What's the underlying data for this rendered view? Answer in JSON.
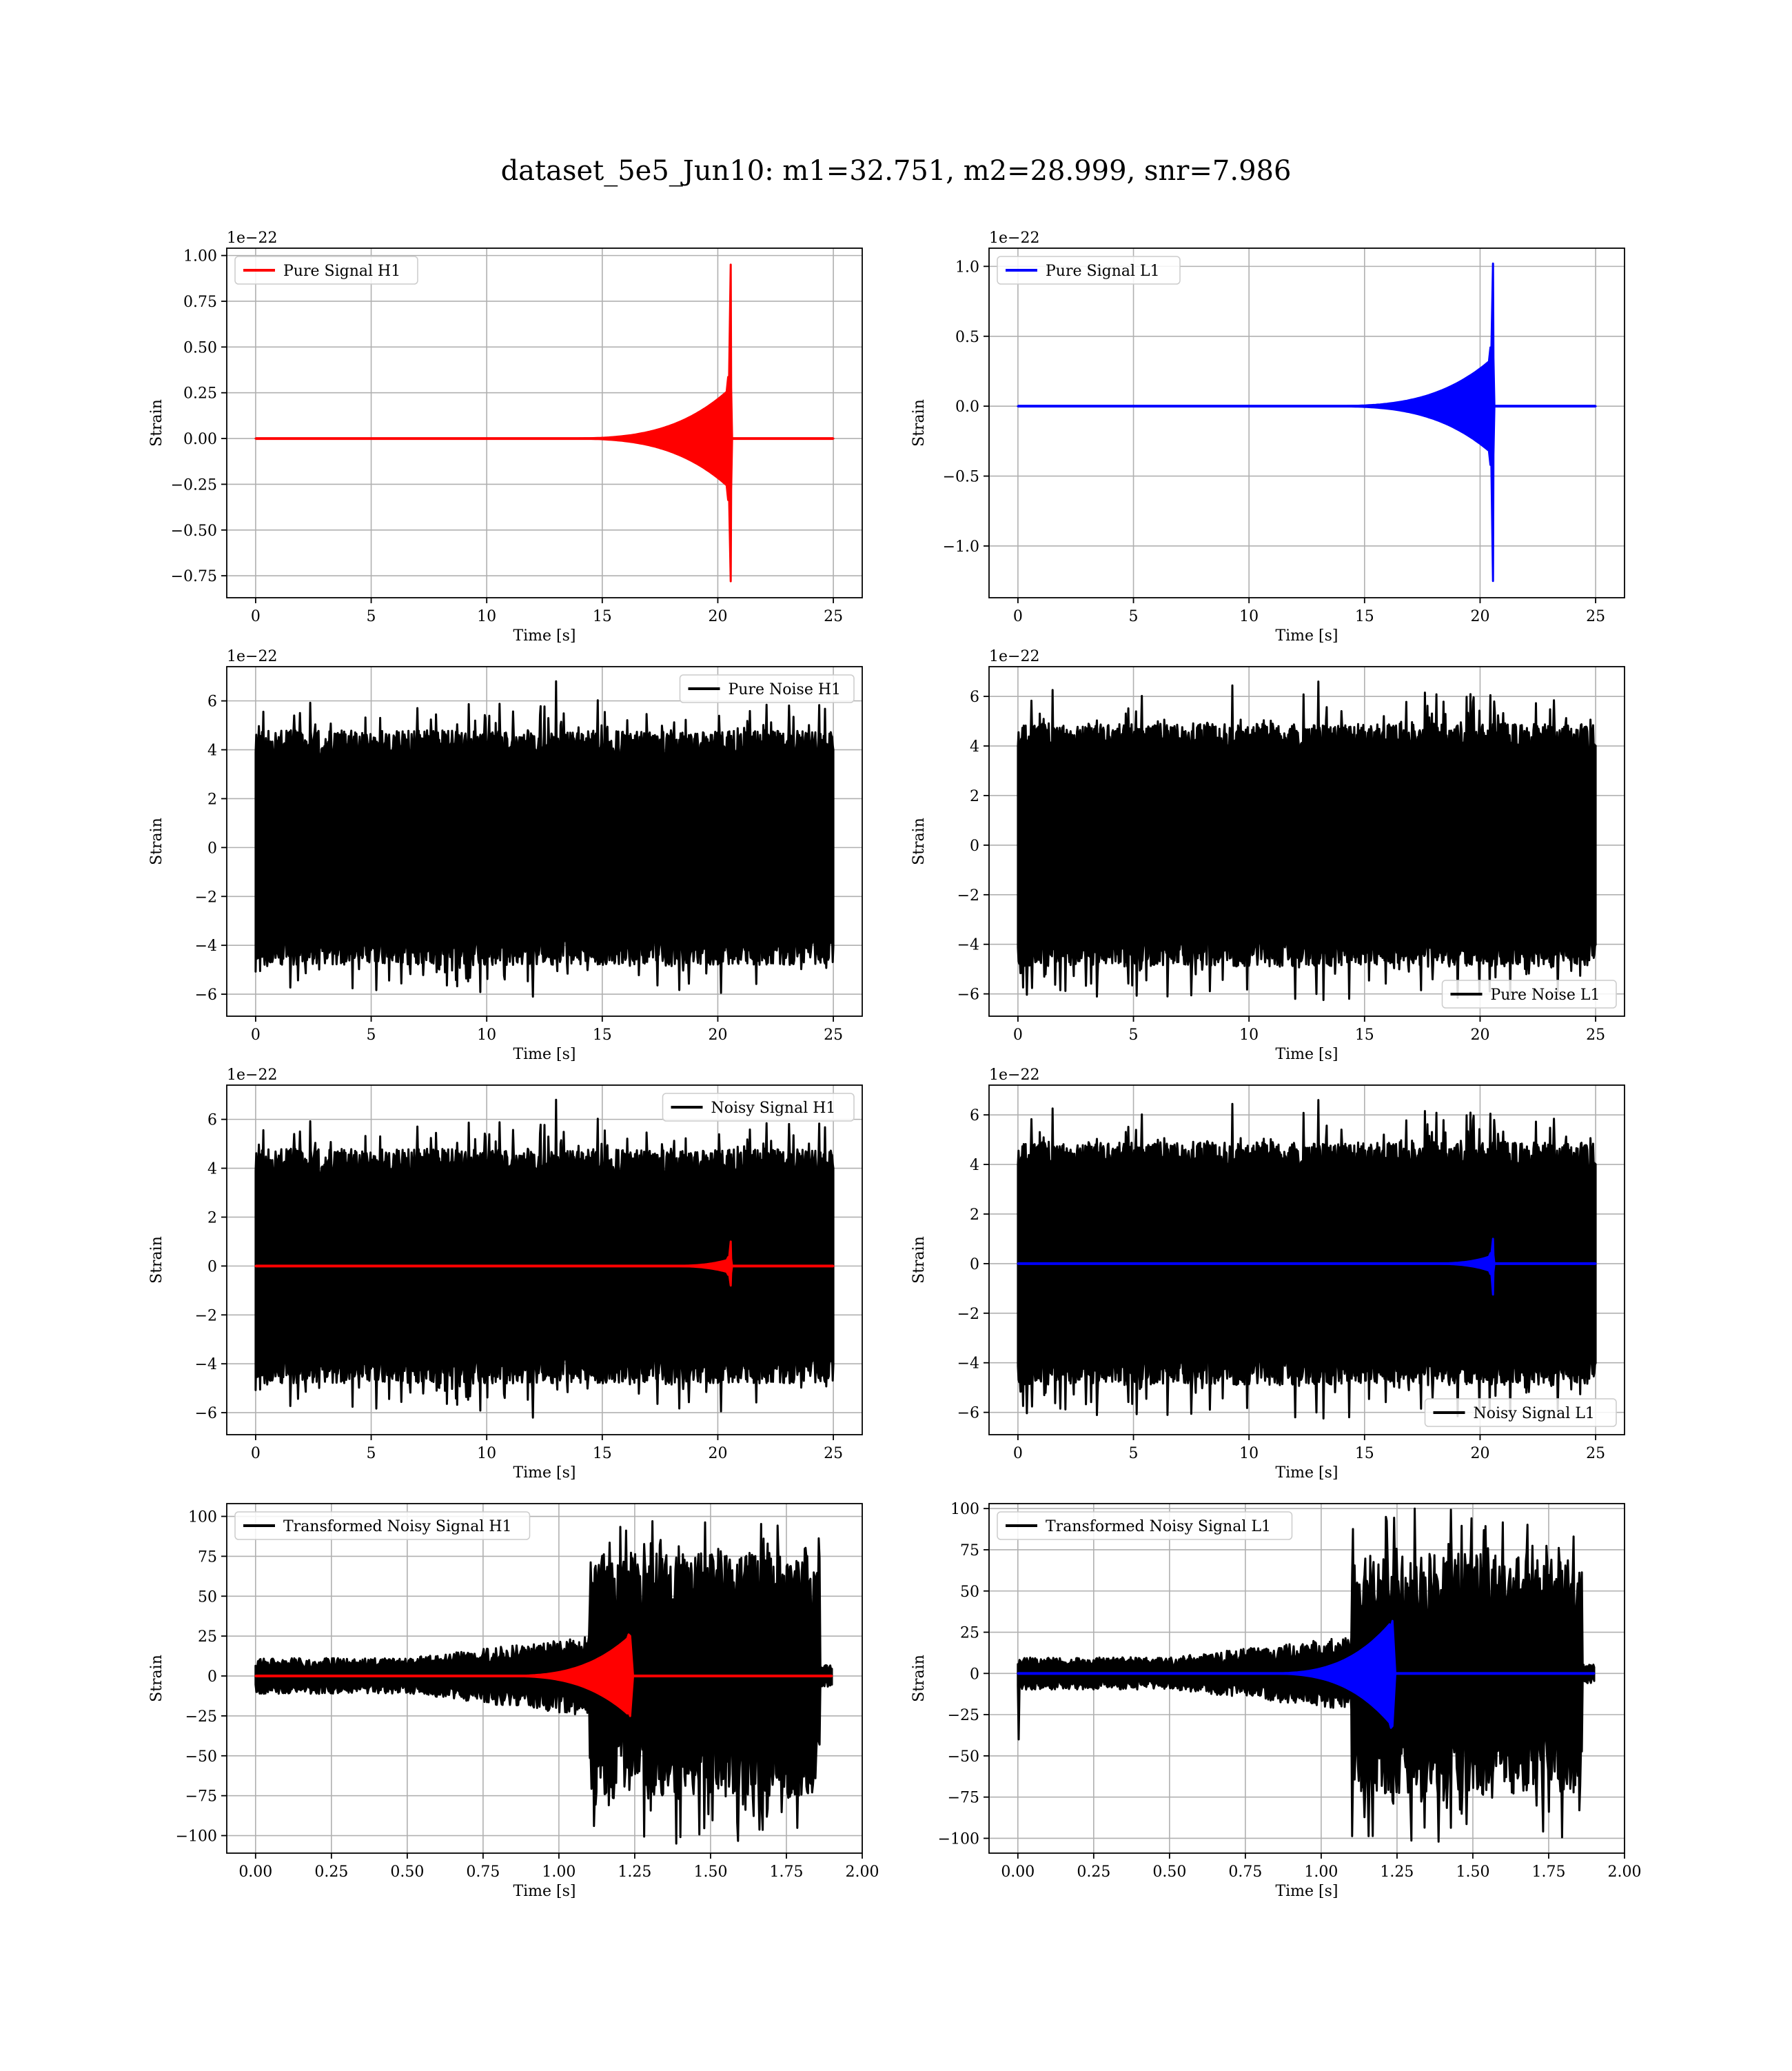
{
  "figure": {
    "title": "dataset_5e5_Jun10: m1=32.751, m2=28.999, snr=7.986"
  },
  "colors": {
    "h1_signal": "#ff0000",
    "l1_signal": "#0000ff",
    "noise": "#000000",
    "grid": "#b0b0b0",
    "axes": "#000000",
    "legend_border": "#cccccc"
  },
  "chart_data": [
    {
      "type": "line",
      "title": "",
      "xlabel": "Time [s]",
      "ylabel": "Strain",
      "offset_text": "1e−22",
      "xlim": [
        -1.25,
        26.25
      ],
      "ylim": [
        -0.87,
        1.04
      ],
      "xticks": [
        0,
        5,
        10,
        15,
        20,
        25
      ],
      "xtick_labels": [
        "0",
        "5",
        "10",
        "15",
        "20",
        "25"
      ],
      "yticks": [
        -0.75,
        -0.5,
        -0.25,
        0.0,
        0.25,
        0.5,
        0.75,
        1.0
      ],
      "ytick_labels": [
        "−0.75",
        "−0.50",
        "−0.25",
        "0.00",
        "0.25",
        "0.50",
        "0.75",
        "1.00"
      ],
      "grid": true,
      "legend_position": "top-left",
      "series": [
        {
          "name": "Pure Signal H1",
          "color": "#ff0000",
          "kind": "chirp",
          "duration": 25,
          "merger_time": 20.6,
          "onset_time": 13.0,
          "plateau_amp": 0.28,
          "peak_pos": 0.95,
          "peak_neg": -0.78
        }
      ]
    },
    {
      "type": "line",
      "title": "",
      "xlabel": "Time [s]",
      "ylabel": "Strain",
      "offset_text": "1e−22",
      "xlim": [
        -1.25,
        26.25
      ],
      "ylim": [
        -1.37,
        1.13
      ],
      "xticks": [
        0,
        5,
        10,
        15,
        20,
        25
      ],
      "xtick_labels": [
        "0",
        "5",
        "10",
        "15",
        "20",
        "25"
      ],
      "yticks": [
        -1.0,
        -0.5,
        0.0,
        0.5,
        1.0
      ],
      "ytick_labels": [
        "−1.0",
        "−0.5",
        "0.0",
        "0.5",
        "1.0"
      ],
      "grid": true,
      "legend_position": "top-left",
      "series": [
        {
          "name": "Pure Signal L1",
          "color": "#0000ff",
          "kind": "chirp",
          "duration": 25,
          "merger_time": 20.6,
          "onset_time": 13.0,
          "plateau_amp": 0.35,
          "peak_pos": 1.02,
          "peak_neg": -1.25
        }
      ]
    },
    {
      "type": "line",
      "title": "",
      "xlabel": "Time [s]",
      "ylabel": "Strain",
      "offset_text": "1e−22",
      "xlim": [
        -1.25,
        26.25
      ],
      "ylim": [
        -6.9,
        7.4
      ],
      "xticks": [
        0,
        5,
        10,
        15,
        20,
        25
      ],
      "xtick_labels": [
        "0",
        "5",
        "10",
        "15",
        "20",
        "25"
      ],
      "yticks": [
        -6,
        -4,
        -2,
        0,
        2,
        4,
        6
      ],
      "ytick_labels": [
        "−6",
        "−4",
        "−2",
        "0",
        "2",
        "4",
        "6"
      ],
      "grid": true,
      "legend_position": "top-right",
      "series": [
        {
          "name": "Pure Noise H1",
          "color": "#000000",
          "kind": "noise",
          "duration": 25,
          "core_amp": 3.6,
          "peak_max": 6.8,
          "peak_min": -6.1,
          "seed": 11
        }
      ]
    },
    {
      "type": "line",
      "title": "",
      "xlabel": "Time [s]",
      "ylabel": "Strain",
      "offset_text": "1e−22",
      "xlim": [
        -1.25,
        26.25
      ],
      "ylim": [
        -6.9,
        7.2
      ],
      "xticks": [
        0,
        5,
        10,
        15,
        20,
        25
      ],
      "xtick_labels": [
        "0",
        "5",
        "10",
        "15",
        "20",
        "25"
      ],
      "yticks": [
        -6,
        -4,
        -2,
        0,
        2,
        4,
        6
      ],
      "ytick_labels": [
        "−6",
        "−4",
        "−2",
        "0",
        "2",
        "4",
        "6"
      ],
      "grid": true,
      "legend_position": "bottom-right",
      "series": [
        {
          "name": "Pure Noise L1",
          "color": "#000000",
          "kind": "noise",
          "duration": 25,
          "core_amp": 3.7,
          "peak_max": 6.6,
          "peak_min": -6.2,
          "seed": 23
        }
      ]
    },
    {
      "type": "line",
      "title": "",
      "xlabel": "Time [s]",
      "ylabel": "Strain",
      "offset_text": "1e−22",
      "xlim": [
        -1.25,
        26.25
      ],
      "ylim": [
        -6.9,
        7.4
      ],
      "xticks": [
        0,
        5,
        10,
        15,
        20,
        25
      ],
      "xtick_labels": [
        "0",
        "5",
        "10",
        "15",
        "20",
        "25"
      ],
      "yticks": [
        -6,
        -4,
        -2,
        0,
        2,
        4,
        6
      ],
      "ytick_labels": [
        "−6",
        "−4",
        "−2",
        "0",
        "2",
        "4",
        "6"
      ],
      "grid": true,
      "legend_position": "top-right",
      "series": [
        {
          "name": "Noisy Signal H1",
          "color": "#000000",
          "kind": "noise",
          "duration": 25,
          "core_amp": 3.6,
          "peak_max": 6.8,
          "peak_min": -6.2,
          "seed": 11
        },
        {
          "name": "",
          "color": "#ff0000",
          "kind": "chirp",
          "duration": 25,
          "merger_time": 20.6,
          "onset_time": 17.5,
          "plateau_amp": 0.3,
          "peak_pos": 1.0,
          "peak_neg": -0.8
        }
      ]
    },
    {
      "type": "line",
      "title": "",
      "xlabel": "Time [s]",
      "ylabel": "Strain",
      "offset_text": "1e−22",
      "xlim": [
        -1.25,
        26.25
      ],
      "ylim": [
        -6.9,
        7.2
      ],
      "xticks": [
        0,
        5,
        10,
        15,
        20,
        25
      ],
      "xtick_labels": [
        "0",
        "5",
        "10",
        "15",
        "20",
        "25"
      ],
      "yticks": [
        -6,
        -4,
        -2,
        0,
        2,
        4,
        6
      ],
      "ytick_labels": [
        "−6",
        "−4",
        "−2",
        "0",
        "2",
        "4",
        "6"
      ],
      "grid": true,
      "legend_position": "bottom-right",
      "series": [
        {
          "name": "Noisy Signal L1",
          "color": "#000000",
          "kind": "noise",
          "duration": 25,
          "core_amp": 3.7,
          "peak_max": 6.6,
          "peak_min": -6.2,
          "seed": 23
        },
        {
          "name": "",
          "color": "#0000ff",
          "kind": "chirp",
          "duration": 25,
          "merger_time": 20.6,
          "onset_time": 17.5,
          "plateau_amp": 0.35,
          "peak_pos": 1.0,
          "peak_neg": -1.25
        }
      ]
    },
    {
      "type": "line",
      "title": "",
      "xlabel": "Time [s]",
      "ylabel": "Strain",
      "offset_text": "",
      "xlim": [
        -0.095,
        2.0
      ],
      "ylim": [
        -111,
        108
      ],
      "xticks": [
        0.0,
        0.25,
        0.5,
        0.75,
        1.0,
        1.25,
        1.5,
        1.75,
        2.0
      ],
      "xtick_labels": [
        "0.00",
        "0.25",
        "0.50",
        "0.75",
        "1.00",
        "1.25",
        "1.50",
        "1.75",
        "2.00"
      ],
      "yticks": [
        -100,
        -75,
        -50,
        -25,
        0,
        25,
        50,
        75,
        100
      ],
      "ytick_labels": [
        "−100",
        "−75",
        "−50",
        "−25",
        "0",
        "25",
        "50",
        "75",
        "100"
      ],
      "grid": true,
      "legend_position": "top-left",
      "series": [
        {
          "name": "Transformed Noisy Signal H1",
          "color": "#000000",
          "kind": "whitened",
          "duration": 1.9,
          "early_amp": 8,
          "mid_amp": 18,
          "loud_start": 1.1,
          "loud_end": 1.86,
          "loud_amp": 55,
          "peak_max": 97,
          "peak_min": -105,
          "seed": 31
        },
        {
          "name": "",
          "color": "#ff0000",
          "kind": "wchirp",
          "duration": 1.9,
          "merger_time": 1.24,
          "peak_pos": 26,
          "peak_neg": -23
        }
      ]
    },
    {
      "type": "line",
      "title": "",
      "xlabel": "Time [s]",
      "ylabel": "Strain",
      "offset_text": "",
      "xlim": [
        -0.095,
        2.0
      ],
      "ylim": [
        -109,
        103
      ],
      "xticks": [
        0.0,
        0.25,
        0.5,
        0.75,
        1.0,
        1.25,
        1.5,
        1.75,
        2.0
      ],
      "xtick_labels": [
        "0.00",
        "0.25",
        "0.50",
        "0.75",
        "1.00",
        "1.25",
        "1.50",
        "1.75",
        "2.00"
      ],
      "yticks": [
        -100,
        -75,
        -50,
        -25,
        0,
        25,
        50,
        75,
        100
      ],
      "ytick_labels": [
        "−100",
        "−75",
        "−50",
        "−25",
        "0",
        "25",
        "50",
        "75",
        "100"
      ],
      "grid": true,
      "legend_position": "top-left",
      "series": [
        {
          "name": "Transformed Noisy Signal L1",
          "color": "#000000",
          "kind": "whitened",
          "duration": 1.9,
          "early_amp": 7,
          "mid_amp": 16,
          "loud_start": 1.1,
          "loud_end": 1.86,
          "loud_amp": 52,
          "peak_max": 100,
          "peak_min": -102,
          "seed": 47,
          "start_dip": -40
        },
        {
          "name": "",
          "color": "#0000ff",
          "kind": "wchirp",
          "duration": 1.9,
          "merger_time": 1.24,
          "peak_pos": 28,
          "peak_neg": -33
        }
      ]
    }
  ]
}
